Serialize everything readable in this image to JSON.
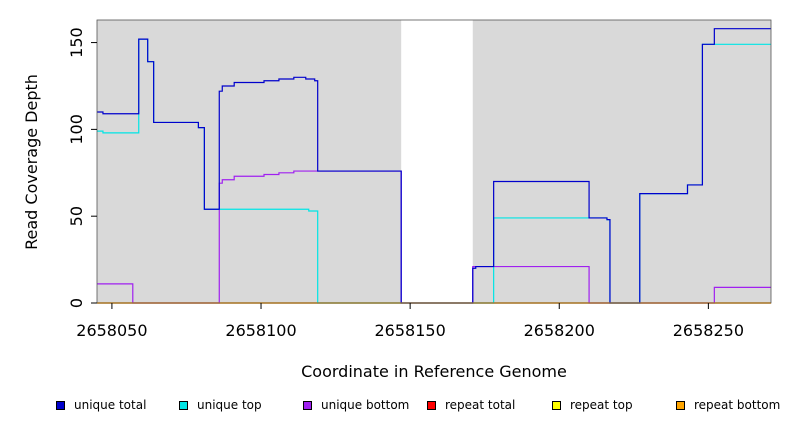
{
  "chart_data": {
    "type": "line",
    "title": "",
    "xlabel": "Coordinate in Reference Genome",
    "ylabel": "Read Coverage Depth",
    "xlim": [
      2658045,
      2658271
    ],
    "ylim": [
      0,
      163
    ],
    "xticks": [
      2658050,
      2658100,
      2658150,
      2658200,
      2658250
    ],
    "xtick_labels": [
      "2658050",
      "2658100",
      "2658150",
      "2658200",
      "2658250"
    ],
    "yticks": [
      0,
      50,
      100,
      150
    ],
    "ytick_labels": [
      "0",
      "50",
      "100",
      "150"
    ],
    "background": "#d9d9d9",
    "gap_regions": [
      [
        2658147,
        2658171
      ]
    ],
    "grid": false,
    "legend_position": "bottom",
    "series": [
      {
        "name": "unique total",
        "color": "#0000cc",
        "x": [
          2658045,
          2658047,
          2658047,
          2658059,
          2658059,
          2658062,
          2658062,
          2658064,
          2658064,
          2658079,
          2658079,
          2658081,
          2658081,
          2658086,
          2658086,
          2658087,
          2658087,
          2658091,
          2658091,
          2658101,
          2658101,
          2658106,
          2658106,
          2658111,
          2658111,
          2658115,
          2658115,
          2658118,
          2658118,
          2658119,
          2658119,
          2658147,
          2658147,
          2658171,
          2658171,
          2658172,
          2658172,
          2658178,
          2658178,
          2658210,
          2658210,
          2658216,
          2658216,
          2658217,
          2658217,
          2658227,
          2658227,
          2658243,
          2658243,
          2658248,
          2658248,
          2658252,
          2658252,
          2658271
        ],
        "y": [
          110,
          110,
          109,
          109,
          152,
          152,
          139,
          139,
          104,
          104,
          101,
          101,
          54,
          54,
          122,
          122,
          125,
          125,
          127,
          127,
          128,
          128,
          129,
          129,
          130,
          130,
          129,
          129,
          128,
          128,
          76,
          76,
          0,
          0,
          20,
          20,
          21,
          21,
          70,
          70,
          49,
          49,
          48,
          48,
          0,
          0,
          63,
          63,
          68,
          68,
          149,
          149,
          158,
          158
        ]
      },
      {
        "name": "unique top",
        "color": "#00e5e5",
        "x": [
          2658045,
          2658047,
          2658047,
          2658059,
          2658059,
          2658062,
          2658062,
          2658064,
          2658064,
          2658079,
          2658079,
          2658081,
          2658081,
          2658086,
          2658086,
          2658116,
          2658116,
          2658119,
          2658119,
          2658147,
          2658147,
          2658178,
          2658178,
          2658210,
          2658210,
          2658216,
          2658216,
          2658217,
          2658217,
          2658227,
          2658227,
          2658243,
          2658243,
          2658248,
          2658248,
          2658271
        ],
        "y": [
          99,
          99,
          98,
          98,
          152,
          152,
          139,
          139,
          104,
          104,
          101,
          101,
          54,
          54,
          54,
          54,
          53,
          53,
          0,
          0,
          0,
          0,
          49,
          49,
          49,
          49,
          48,
          48,
          0,
          0,
          63,
          63,
          68,
          68,
          149,
          149
        ]
      },
      {
        "name": "unique bottom",
        "color": "#a020f0",
        "x": [
          2658045,
          2658057,
          2658057,
          2658086,
          2658086,
          2658087,
          2658087,
          2658091,
          2658091,
          2658101,
          2658101,
          2658106,
          2658106,
          2658111,
          2658111,
          2658119,
          2658119,
          2658147,
          2658147,
          2658171,
          2658171,
          2658210,
          2658210,
          2658252,
          2658252,
          2658271
        ],
        "y": [
          11,
          11,
          0,
          0,
          69,
          69,
          71,
          71,
          73,
          73,
          74,
          74,
          75,
          75,
          76,
          76,
          76,
          76,
          0,
          0,
          21,
          21,
          0,
          0,
          9,
          9
        ]
      },
      {
        "name": "repeat total",
        "color": "#ff0000",
        "x": [
          2658045,
          2658271
        ],
        "y": [
          0,
          0
        ]
      },
      {
        "name": "repeat top",
        "color": "#ffff00",
        "x": [
          2658045,
          2658271
        ],
        "y": [
          0,
          0
        ]
      },
      {
        "name": "repeat bottom",
        "color": "#ffa500",
        "x": [
          2658045,
          2658271
        ],
        "y": [
          0,
          0
        ]
      }
    ]
  },
  "legend": {
    "items": [
      {
        "label": "unique total",
        "color": "#0000cc"
      },
      {
        "label": "unique top",
        "color": "#00e5e5"
      },
      {
        "label": "unique bottom",
        "color": "#a020f0"
      },
      {
        "label": "repeat total",
        "color": "#ff0000"
      },
      {
        "label": "repeat top",
        "color": "#ffff00"
      },
      {
        "label": "repeat bottom",
        "color": "#ffa500"
      }
    ]
  }
}
